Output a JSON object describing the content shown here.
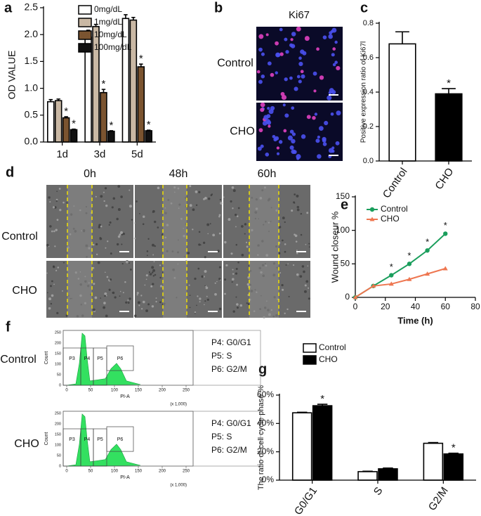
{
  "chart_data": [
    {
      "panel": "a",
      "type": "bar",
      "ylabel": "OD VALUE",
      "categories": [
        "1d",
        "3d",
        "5d"
      ],
      "ylim": [
        0,
        2.5
      ],
      "yticks": [
        {
          "value": 0,
          "label": "0.0"
        },
        0.5,
        {
          "value": 1,
          "label": "1.0"
        },
        1.5,
        {
          "value": 2,
          "label": "2.0"
        },
        2.5
      ],
      "series": [
        {
          "name": "0mg/dL",
          "color": "#ffffff",
          "values": [
            0.75,
            1.95,
            2.3
          ],
          "errors": [
            0.04,
            0.13,
            0.07
          ]
        },
        {
          "name": "1mg/dL",
          "color": "#c9b8a4",
          "values": [
            0.77,
            2.15,
            2.27
          ],
          "errors": [
            0.03,
            0.04,
            0.05
          ]
        },
        {
          "name": "10mg/dL",
          "color": "#7b5430",
          "values": [
            0.45,
            0.92,
            1.4
          ],
          "errors": [
            0.02,
            0.06,
            0.05
          ],
          "significance": [
            "*",
            "*",
            "*"
          ]
        },
        {
          "name": "100mg/dL",
          "color": "#111111",
          "values": [
            0.23,
            0.2,
            0.21
          ],
          "errors": [
            0.01,
            0.01,
            0.01
          ],
          "significance": [
            "*",
            "*",
            "*"
          ]
        }
      ]
    },
    {
      "panel": "c",
      "type": "bar",
      "ylabel": "Positive expression ratio of Ki67l",
      "categories": [
        "Control",
        "CHO"
      ],
      "ylim": [
        0,
        0.8
      ],
      "yticks": [
        {
          "value": 0,
          "label": "0.0"
        },
        0.2,
        0.4,
        0.6,
        0.8
      ],
      "values": [
        0.68,
        0.39
      ],
      "errors": [
        0.07,
        0.03
      ],
      "colors": [
        "#ffffff",
        "#000000"
      ],
      "significance": [
        null,
        "*"
      ]
    },
    {
      "panel": "e",
      "type": "line",
      "xlabel": "Time (h)",
      "ylabel": "Wound closeur %",
      "x": [
        0,
        12,
        24,
        36,
        48,
        60
      ],
      "xlim": [
        0,
        80
      ],
      "xticks": [
        0,
        20,
        40,
        60,
        80
      ],
      "ylim": [
        0,
        150
      ],
      "yticks": [
        0,
        50,
        100,
        150
      ],
      "series": [
        {
          "name": "Control",
          "color": "#1a9e5c",
          "marker": "circle",
          "values": [
            0,
            17,
            33,
            50,
            70,
            95
          ],
          "significance": [
            null,
            null,
            "*",
            "*",
            "*",
            "*"
          ]
        },
        {
          "name": "CHO",
          "color": "#ee7650",
          "marker": "triangle",
          "values": [
            0,
            17,
            20,
            27,
            35,
            43
          ]
        }
      ]
    },
    {
      "panel": "g",
      "type": "bar",
      "ylabel": "The ratio of cell cycle phase %",
      "categories": [
        "G0/G1",
        "S",
        "G2/M"
      ],
      "ylim": [
        0,
        60
      ],
      "yticks": [
        {
          "value": 0,
          "label": "0%"
        },
        {
          "value": 20,
          "label": "20%"
        },
        {
          "value": 40,
          "label": "40%"
        },
        {
          "value": 60,
          "label": "60%"
        }
      ],
      "series": [
        {
          "name": "Control",
          "color": "#ffffff",
          "values": [
            47.5,
            6,
            26
          ],
          "errors": [
            0.4,
            0.3,
            0.5
          ]
        },
        {
          "name": "CHO",
          "color": "#000000",
          "values": [
            52.5,
            8,
            18.5
          ],
          "errors": [
            1,
            0.5,
            0.5
          ],
          "significance": [
            "*",
            null,
            "*"
          ]
        }
      ]
    }
  ],
  "image_panels": {
    "b": {
      "label": "b",
      "title": "Ki67",
      "rows": [
        "Control",
        "CHO"
      ]
    },
    "d": {
      "label": "d",
      "columns": [
        "0h",
        "48h",
        "60h"
      ],
      "rows": [
        "Control",
        "CHO"
      ]
    },
    "f": {
      "label": "f",
      "rows": [
        "Control",
        "CHO"
      ],
      "gates": [
        "P3",
        "P4",
        "P5",
        "P6"
      ],
      "legend": [
        "P4: G0/G1",
        "P5: S",
        "P6: G2/M"
      ],
      "ylabel": "Count",
      "xlabel": "PI-A",
      "xunit": "(x 1,000)",
      "yticks": [
        "0",
        "50",
        "100",
        "150",
        "200",
        "250"
      ],
      "xticks": [
        "0",
        "50",
        "100",
        "150",
        "200",
        "250"
      ]
    }
  }
}
